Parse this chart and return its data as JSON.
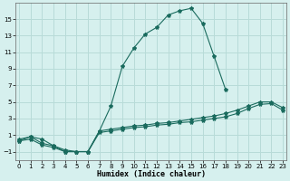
{
  "xlabel": "Humidex (Indice chaleur)",
  "bg_color": "#d6f0ee",
  "line_color": "#1a6b5e",
  "grid_color": "#b8dbd8",
  "series": [
    {
      "x": [
        0,
        1,
        2,
        3,
        4,
        5,
        6,
        7,
        8,
        9,
        10,
        11,
        12,
        13,
        14,
        15,
        16,
        17,
        18
      ],
      "y": [
        0.3,
        0.8,
        0.5,
        -0.3,
        -1.0,
        -1.0,
        -1.0,
        1.5,
        4.5,
        9.3,
        11.5,
        13.2,
        14.0,
        15.5,
        16.0,
        16.3,
        14.5,
        10.5,
        6.5
      ]
    },
    {
      "x": [
        0,
        1,
        2,
        3,
        4,
        5,
        6,
        7,
        8,
        9,
        10,
        11,
        12,
        13,
        14,
        15,
        16,
        17,
        18,
        19,
        20,
        21,
        22,
        23
      ],
      "y": [
        0.3,
        0.5,
        -0.2,
        -0.5,
        -1.0,
        -1.0,
        -1.0,
        1.5,
        1.7,
        1.9,
        2.1,
        2.2,
        2.4,
        2.5,
        2.7,
        2.9,
        3.1,
        3.3,
        3.6,
        4.0,
        4.5,
        5.0,
        5.0,
        4.3
      ]
    },
    {
      "x": [
        0,
        1,
        2,
        3,
        4,
        5,
        6,
        7,
        8,
        9,
        10,
        11,
        12,
        13,
        14,
        15,
        16,
        17,
        18,
        19,
        20,
        21,
        22,
        23
      ],
      "y": [
        0.5,
        0.8,
        0.0,
        -0.3,
        -0.8,
        -1.0,
        -1.0,
        1.3,
        1.5,
        1.7,
        1.9,
        2.0,
        2.2,
        2.3,
        2.5,
        2.6,
        2.8,
        3.0,
        3.2,
        3.6,
        4.2,
        4.7,
        4.8,
        4.0
      ]
    }
  ],
  "xlim": [
    -0.3,
    23.3
  ],
  "ylim": [
    -2.0,
    17.0
  ],
  "yticks": [
    -1,
    1,
    3,
    5,
    7,
    9,
    11,
    13,
    15
  ],
  "xticks": [
    0,
    1,
    2,
    3,
    4,
    5,
    6,
    7,
    8,
    9,
    10,
    11,
    12,
    13,
    14,
    15,
    16,
    17,
    18,
    19,
    20,
    21,
    22,
    23
  ],
  "tick_fontsize": 5.0,
  "xlabel_fontsize": 6.0
}
